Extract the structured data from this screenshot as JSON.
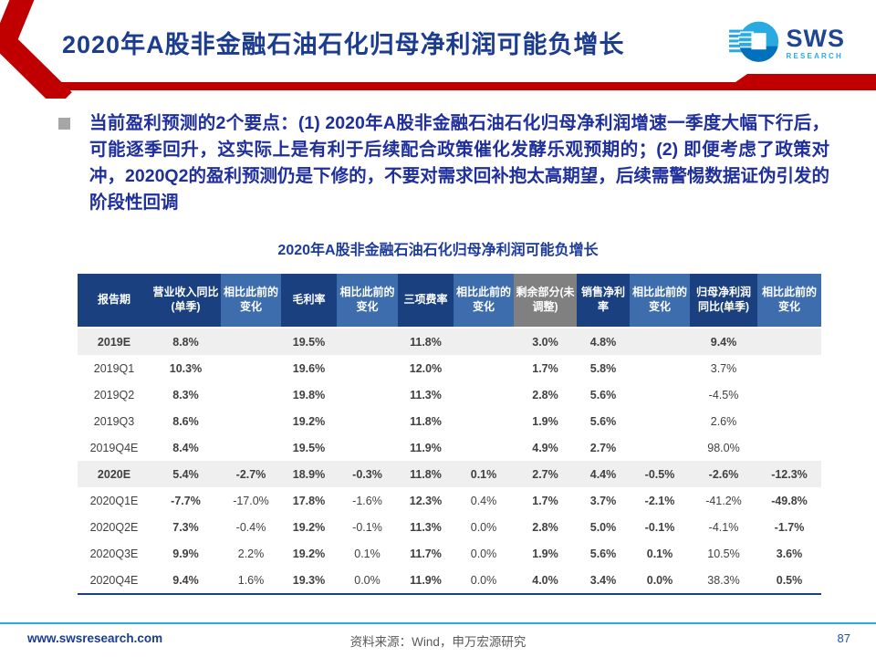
{
  "header": {
    "title": "2020年A股非金融石油石化归母净利润可能负增长",
    "logo": {
      "brand": "SWS",
      "sub": "RESEARCH"
    }
  },
  "bullet": {
    "text": "当前盈利预测的2个要点：(1) 2020年A股非金融石油石化归母净利润增速一季度大幅下行后，可能逐季回升，这实际上是有利于后续配合政策催化发酵乐观预期的；(2) 即便考虑了政策对冲，2020Q2的盈利预测仍是下修的，不要对需求回补抱太高期望，后续需警惕数据证伪引发的阶段性回调"
  },
  "table": {
    "title": "2020年A股非金融石油石化归母净利润可能负增长",
    "columns": [
      {
        "label": "报告期",
        "variant": "dark"
      },
      {
        "label": "营业收入同比(单季)",
        "variant": "dark"
      },
      {
        "label": "相比此前的变化",
        "variant": "light"
      },
      {
        "label": "毛利率",
        "variant": "dark"
      },
      {
        "label": "相比此前的变化",
        "variant": "light"
      },
      {
        "label": "三项费率",
        "variant": "dark"
      },
      {
        "label": "相比此前的变化",
        "variant": "light"
      },
      {
        "label": "剩余部分(未调整)",
        "variant": "gray"
      },
      {
        "label": "销售净利率",
        "variant": "dark"
      },
      {
        "label": "相比此前的变化",
        "variant": "light"
      },
      {
        "label": "归母净利润同比(单季)",
        "variant": "dark"
      },
      {
        "label": "相比此前的变化",
        "variant": "light"
      }
    ],
    "rows": [
      {
        "period": "2019E",
        "highlight": true,
        "cells": [
          "8.8%",
          "",
          "19.5%",
          "",
          "11.8%",
          "",
          "3.0%",
          "4.8%",
          "",
          "9.4%",
          ""
        ],
        "colors": [
          "",
          "",
          "",
          "",
          "",
          "",
          "",
          "",
          "",
          "",
          ""
        ]
      },
      {
        "period": "2019Q1",
        "highlight": false,
        "cells": [
          "10.3%",
          "",
          "19.6%",
          "",
          "12.0%",
          "",
          "1.7%",
          "5.8%",
          "",
          "3.7%",
          ""
        ],
        "colors": [
          "",
          "",
          "",
          "",
          "",
          "",
          "",
          "",
          "",
          "",
          ""
        ]
      },
      {
        "period": "2019Q2",
        "highlight": false,
        "cells": [
          "8.3%",
          "",
          "19.8%",
          "",
          "11.3%",
          "",
          "2.8%",
          "5.6%",
          "",
          "-4.5%",
          ""
        ],
        "colors": [
          "",
          "",
          "",
          "",
          "",
          "",
          "",
          "",
          "",
          "",
          ""
        ]
      },
      {
        "period": "2019Q3",
        "highlight": false,
        "cells": [
          "8.6%",
          "",
          "19.2%",
          "",
          "11.8%",
          "",
          "1.9%",
          "5.6%",
          "",
          "2.6%",
          ""
        ],
        "colors": [
          "",
          "",
          "",
          "",
          "",
          "",
          "",
          "",
          "",
          "",
          ""
        ]
      },
      {
        "period": "2019Q4E",
        "highlight": false,
        "cells": [
          "8.4%",
          "",
          "19.5%",
          "",
          "11.9%",
          "",
          "4.9%",
          "2.7%",
          "",
          "98.0%",
          ""
        ],
        "colors": [
          "",
          "",
          "",
          "",
          "",
          "",
          "",
          "",
          "",
          "",
          ""
        ]
      },
      {
        "period": "2020E",
        "highlight": true,
        "cells": [
          "5.4%",
          "-2.7%",
          "18.9%",
          "-0.3%",
          "11.8%",
          "0.1%",
          "2.7%",
          "4.4%",
          "-0.5%",
          "-2.6%",
          "-12.3%"
        ],
        "colors": [
          "",
          "g",
          "",
          "g",
          "",
          "r",
          "",
          "",
          "g",
          "",
          "g"
        ]
      },
      {
        "period": "2020Q1E",
        "highlight": false,
        "cells": [
          "-7.7%",
          "-17.0%",
          "17.8%",
          "-1.6%",
          "12.3%",
          "0.4%",
          "1.7%",
          "3.7%",
          "-2.1%",
          "-41.2%",
          "-49.8%"
        ],
        "colors": [
          "",
          "g",
          "",
          "g",
          "",
          "r",
          "",
          "",
          "g",
          "",
          "g"
        ]
      },
      {
        "period": "2020Q2E",
        "highlight": false,
        "cells": [
          "7.3%",
          "-0.4%",
          "19.2%",
          "-0.1%",
          "11.3%",
          "0.0%",
          "2.8%",
          "5.0%",
          "-0.1%",
          "-4.1%",
          "-1.7%"
        ],
        "colors": [
          "",
          "g",
          "",
          "g",
          "",
          "",
          "",
          "",
          "g",
          "",
          "g"
        ]
      },
      {
        "period": "2020Q3E",
        "highlight": false,
        "cells": [
          "9.9%",
          "2.2%",
          "19.2%",
          "0.1%",
          "11.7%",
          "0.0%",
          "1.9%",
          "5.6%",
          "0.1%",
          "10.5%",
          "3.6%"
        ],
        "colors": [
          "",
          "r",
          "",
          "r",
          "",
          "",
          "",
          "",
          "r",
          "",
          "r"
        ]
      },
      {
        "period": "2020Q4E",
        "highlight": false,
        "cells": [
          "9.4%",
          "1.6%",
          "19.3%",
          "0.0%",
          "11.9%",
          "0.0%",
          "4.0%",
          "3.4%",
          "0.0%",
          "38.3%",
          "0.5%"
        ],
        "colors": [
          "",
          "r",
          "",
          "",
          "",
          "",
          "",
          "",
          "",
          "",
          "r"
        ]
      }
    ]
  },
  "footer": {
    "url": "www.swsresearch.com",
    "source": "资料来源：Wind，申万宏源研究",
    "page": "87"
  },
  "colors": {
    "accent_red": "#C00000",
    "header_dark_blue": "#1B4080",
    "header_light_blue": "#3E6DAE",
    "header_gray": "#808080",
    "title_blue": "#1B3C8F",
    "body_blue": "#1F2F9B",
    "change_up_red": "#EE0000",
    "change_down_green": "#00A651",
    "footer_line_cyan": "#29ABE2"
  }
}
